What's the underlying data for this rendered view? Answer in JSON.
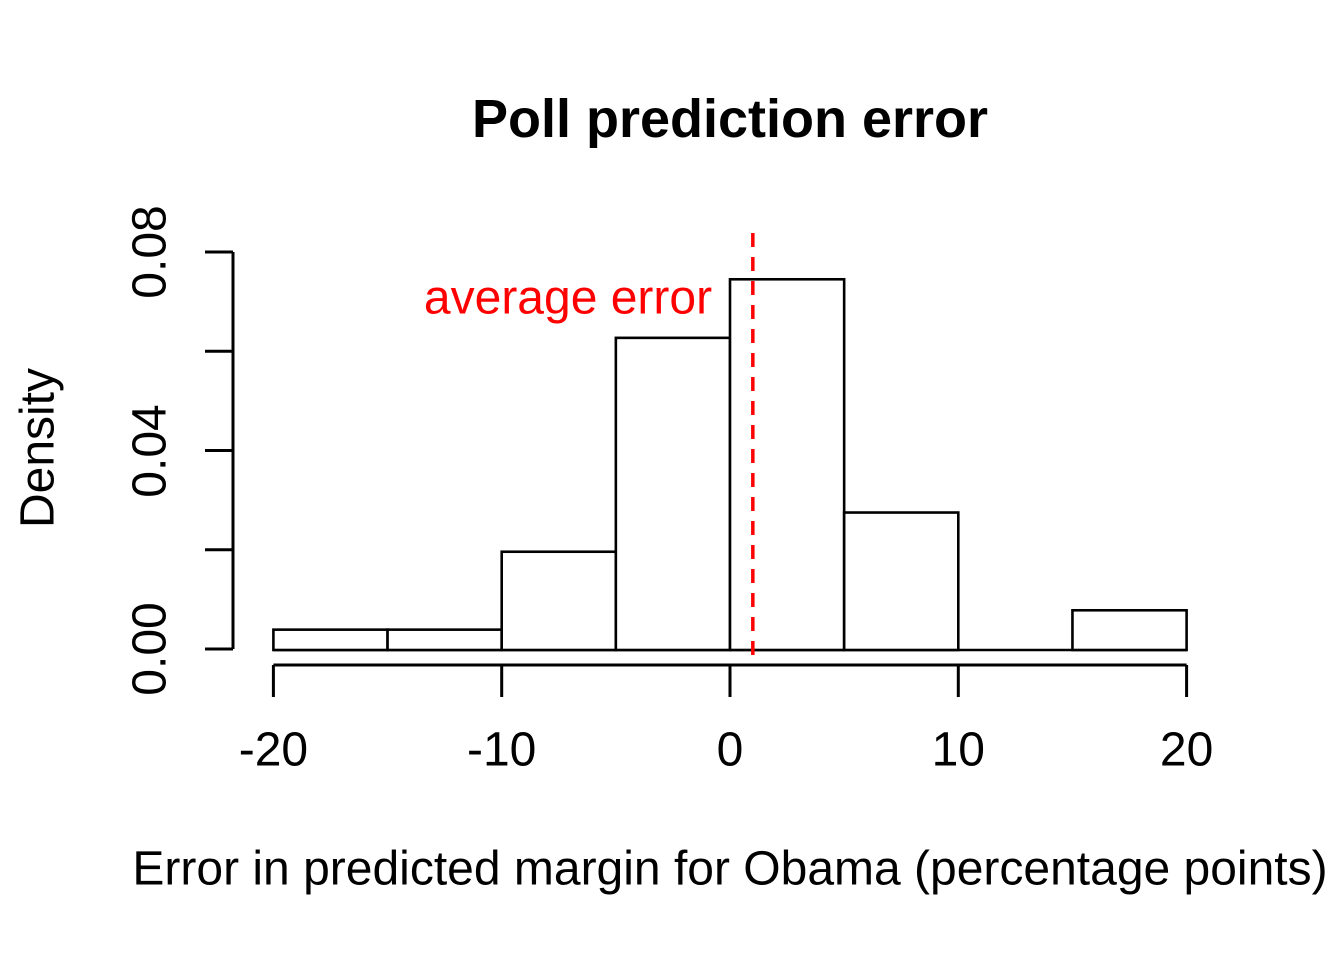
{
  "figure": {
    "background": "#ffffff"
  },
  "chart_data": {
    "type": "bar",
    "subtype": "histogram",
    "title": "Poll prediction error",
    "xlabel": "Error in predicted margin for Obama (percentage points)",
    "ylabel": "Density",
    "bin_edges": [
      -20,
      -15,
      -10,
      -5,
      0,
      5,
      10,
      15,
      20
    ],
    "densities": [
      0.0039,
      0.0039,
      0.0196,
      0.0627,
      0.0745,
      0.0275,
      0,
      0.0078
    ],
    "xlim": [
      -20,
      20
    ],
    "ylim": [
      0,
      0.08
    ],
    "x_ticks": [
      -20,
      -10,
      0,
      10,
      20
    ],
    "x_tick_labels": [
      "-20",
      "-10",
      "0",
      "10",
      "20"
    ],
    "y_ticks": [
      0,
      0.02,
      0.04,
      0.06,
      0.08
    ],
    "y_labeled_ticks": [
      0,
      0.04,
      0.08
    ],
    "y_tick_labels": [
      "0.00",
      "0.04",
      "0.08"
    ],
    "grid": false,
    "legend": "none",
    "bar_fill": "#ffffff",
    "bar_stroke": "#000000",
    "axis_color": "#000000",
    "annotation": {
      "text": "average error",
      "color": "#ff0000",
      "line_x": 1,
      "line_style": "dashed"
    }
  }
}
